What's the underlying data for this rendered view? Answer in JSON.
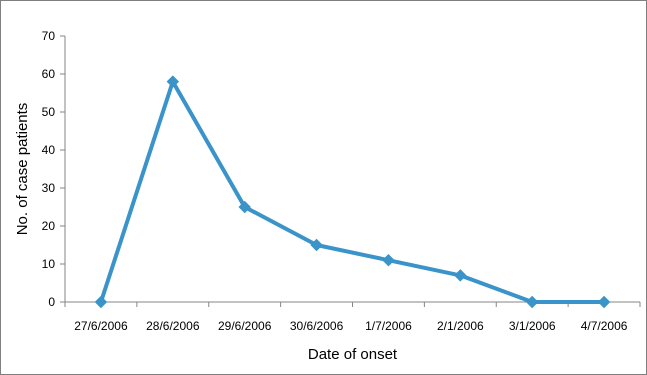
{
  "chart_data": {
    "type": "line",
    "title": "",
    "xlabel": "Date of onset",
    "ylabel": "No. of case patients",
    "categories": [
      "27/6/2006",
      "28/6/2006",
      "29/6/2006",
      "30/6/2006",
      "1/7/2006",
      "2/1/2006",
      "3/1/2006",
      "4/7/2006"
    ],
    "series": [
      {
        "values": [
          0,
          58,
          25,
          15,
          11,
          7,
          0,
          0
        ]
      }
    ],
    "ylim": [
      0,
      70
    ],
    "yticks": [
      "0",
      "10",
      "20",
      "30",
      "40",
      "50",
      "60",
      "70"
    ],
    "grid": false,
    "legend": "none",
    "line_color": "#3a93c9",
    "marker": "diamond"
  }
}
